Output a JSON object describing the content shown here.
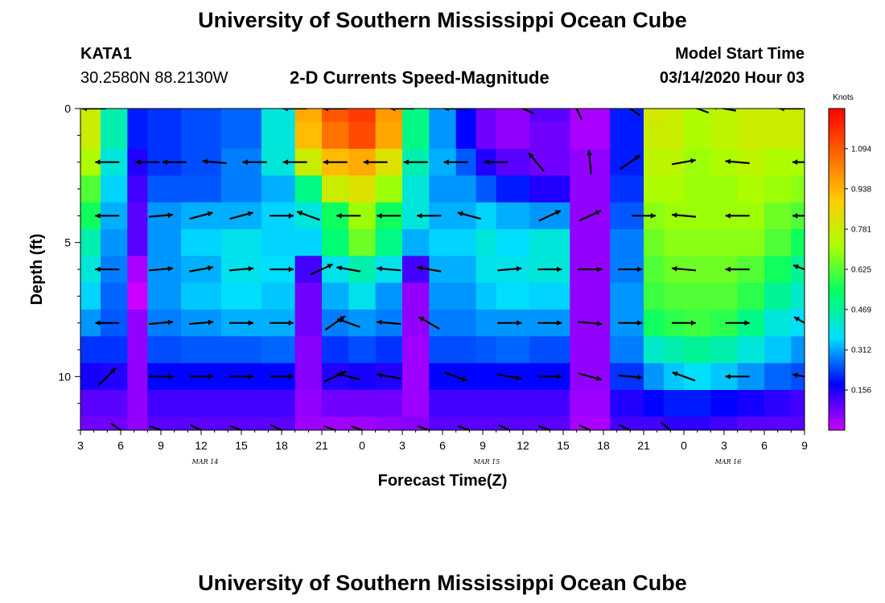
{
  "header": {
    "title": "University of Southern Mississippi Ocean Cube",
    "station": "KATA1",
    "coords": "30.2580N 88.2130W",
    "product": "2-D Currents Speed-Magnitude",
    "model_start_label": "Model Start Time",
    "model_start_value": "03/14/2020 Hour 03"
  },
  "footer": {
    "title": "University of Southern Mississippi Ocean Cube"
  },
  "chart_data": {
    "type": "heatmap",
    "title": "2-D Currents Speed-Magnitude",
    "xlabel": "Forecast Time(Z)",
    "ylabel": "Depth (ft)",
    "x_tick_labels": [
      "3",
      "6",
      "9",
      "12",
      "15",
      "18",
      "21",
      "0",
      "3",
      "6",
      "9",
      "12",
      "15",
      "18",
      "21",
      "0",
      "3",
      "6",
      "9"
    ],
    "date_labels": [
      {
        "text": "MAR 14",
        "tick_index": 3
      },
      {
        "text": "MAR 15",
        "tick_index": 10
      },
      {
        "text": "MAR 16",
        "tick_index": 16
      }
    ],
    "y_ticks": [
      0,
      5,
      10
    ],
    "ylim": [
      0,
      12
    ],
    "y_inverted": true,
    "colorbar": {
      "unit": "Knots",
      "range": [
        0.0,
        1.25
      ],
      "tick_values": [
        1.094,
        0.938,
        0.781,
        0.625,
        0.469,
        0.312,
        0.156
      ],
      "tick_labels": [
        "1.094",
        "0.938",
        "0.781",
        "0.625",
        "0.469",
        "0.312",
        "0.156"
      ],
      "colors": [
        "#cc00ff",
        "#0000ff",
        "#00ddff",
        "#00ff66",
        "#aaff00",
        "#ffcc00",
        "#ff6600",
        "#ff0000"
      ]
    },
    "time_hours": [
      3,
      6,
      7,
      9,
      12,
      15,
      18,
      20,
      22,
      24,
      26,
      28,
      30,
      32,
      33,
      35,
      38,
      41,
      44,
      46,
      47,
      49,
      51,
      53,
      55,
      57
    ],
    "depths_ft": [
      0,
      1,
      2,
      3,
      4,
      5,
      6,
      7,
      8,
      9,
      10,
      11,
      12
    ],
    "speed_knots": [
      [
        0.78,
        0.45,
        0.2,
        0.22,
        0.24,
        0.26,
        0.4,
        0.95,
        1.1,
        1.15,
        0.98,
        0.5,
        0.3,
        0.18,
        0.08,
        0.05,
        0.1,
        0.03,
        0.2,
        0.8,
        0.78,
        0.72,
        0.75,
        0.78,
        0.78,
        0.78
      ],
      [
        0.78,
        0.45,
        0.2,
        0.22,
        0.24,
        0.26,
        0.4,
        0.92,
        1.05,
        1.12,
        0.96,
        0.5,
        0.3,
        0.18,
        0.08,
        0.05,
        0.08,
        0.03,
        0.2,
        0.78,
        0.78,
        0.72,
        0.75,
        0.78,
        0.78,
        0.78
      ],
      [
        0.72,
        0.4,
        0.15,
        0.22,
        0.24,
        0.28,
        0.4,
        0.78,
        0.92,
        0.95,
        0.82,
        0.45,
        0.32,
        0.25,
        0.15,
        0.1,
        0.08,
        0.05,
        0.2,
        0.75,
        0.75,
        0.7,
        0.72,
        0.75,
        0.72,
        0.72
      ],
      [
        0.62,
        0.35,
        0.12,
        0.25,
        0.25,
        0.28,
        0.32,
        0.5,
        0.78,
        0.82,
        0.7,
        0.4,
        0.3,
        0.3,
        0.25,
        0.2,
        0.15,
        0.05,
        0.22,
        0.72,
        0.72,
        0.7,
        0.7,
        0.72,
        0.7,
        0.68
      ],
      [
        0.55,
        0.32,
        0.1,
        0.3,
        0.32,
        0.32,
        0.35,
        0.4,
        0.55,
        0.7,
        0.55,
        0.4,
        0.32,
        0.32,
        0.35,
        0.32,
        0.3,
        0.05,
        0.25,
        0.68,
        0.7,
        0.7,
        0.7,
        0.7,
        0.65,
        0.62
      ],
      [
        0.45,
        0.3,
        0.1,
        0.3,
        0.35,
        0.38,
        0.35,
        0.35,
        0.52,
        0.65,
        0.5,
        0.32,
        0.35,
        0.35,
        0.4,
        0.36,
        0.4,
        0.05,
        0.28,
        0.65,
        0.68,
        0.68,
        0.68,
        0.68,
        0.62,
        0.55
      ],
      [
        0.4,
        0.28,
        0.03,
        0.3,
        0.32,
        0.38,
        0.36,
        0.12,
        0.38,
        0.45,
        0.38,
        0.12,
        0.32,
        0.32,
        0.38,
        0.38,
        0.4,
        0.05,
        0.28,
        0.62,
        0.65,
        0.65,
        0.65,
        0.62,
        0.55,
        0.48
      ],
      [
        0.35,
        0.26,
        0.0,
        0.3,
        0.34,
        0.36,
        0.34,
        0.08,
        0.32,
        0.38,
        0.3,
        0.05,
        0.3,
        0.3,
        0.34,
        0.36,
        0.35,
        0.05,
        0.3,
        0.6,
        0.62,
        0.62,
        0.62,
        0.58,
        0.48,
        0.42
      ],
      [
        0.3,
        0.25,
        0.05,
        0.28,
        0.3,
        0.32,
        0.32,
        0.08,
        0.28,
        0.3,
        0.28,
        0.05,
        0.28,
        0.28,
        0.3,
        0.3,
        0.3,
        0.05,
        0.3,
        0.55,
        0.58,
        0.6,
        0.58,
        0.5,
        0.4,
        0.36
      ],
      [
        0.22,
        0.22,
        0.05,
        0.24,
        0.25,
        0.25,
        0.26,
        0.06,
        0.22,
        0.24,
        0.22,
        0.04,
        0.24,
        0.24,
        0.25,
        0.26,
        0.24,
        0.05,
        0.28,
        0.42,
        0.45,
        0.48,
        0.45,
        0.4,
        0.34,
        0.3
      ],
      [
        0.16,
        0.15,
        0.05,
        0.18,
        0.18,
        0.18,
        0.18,
        0.06,
        0.15,
        0.16,
        0.15,
        0.04,
        0.18,
        0.18,
        0.18,
        0.18,
        0.18,
        0.05,
        0.22,
        0.3,
        0.34,
        0.36,
        0.34,
        0.3,
        0.26,
        0.24
      ],
      [
        0.1,
        0.1,
        0.05,
        0.12,
        0.12,
        0.12,
        0.12,
        0.05,
        0.08,
        0.08,
        0.08,
        0.04,
        0.12,
        0.12,
        0.12,
        0.12,
        0.12,
        0.04,
        0.15,
        0.18,
        0.2,
        0.2,
        0.18,
        0.16,
        0.14,
        0.12
      ],
      [
        0.08,
        0.08,
        0.05,
        0.1,
        0.1,
        0.1,
        0.1,
        0.04,
        0.04,
        0.04,
        0.05,
        0.06,
        0.1,
        0.1,
        0.1,
        0.1,
        0.1,
        0.03,
        0.12,
        0.12,
        0.14,
        0.14,
        0.12,
        0.1,
        0.1,
        0.1
      ]
    ],
    "vectors": [
      {
        "t": 4,
        "d": 0,
        "dir": 180
      },
      {
        "t": 19,
        "d": 0,
        "dir": 180
      },
      {
        "t": 22,
        "d": 0,
        "dir": 180
      },
      {
        "t": 27,
        "d": 0,
        "dir": 180
      },
      {
        "t": 31,
        "d": 0,
        "dir": 180
      },
      {
        "t": 36,
        "d": 0,
        "dir": 155
      },
      {
        "t": 40,
        "d": 0,
        "dir": 115
      },
      {
        "t": 44,
        "d": 0,
        "dir": 145
      },
      {
        "t": 49,
        "d": 0,
        "dir": 160
      },
      {
        "t": 51,
        "d": 0,
        "dir": 170
      },
      {
        "t": 56,
        "d": 0,
        "dir": 180
      },
      {
        "t": 5,
        "d": 2,
        "dir": 180
      },
      {
        "t": 8,
        "d": 2,
        "dir": 180
      },
      {
        "t": 10,
        "d": 2,
        "dir": 180
      },
      {
        "t": 13,
        "d": 2,
        "dir": 175
      },
      {
        "t": 16,
        "d": 2,
        "dir": 180
      },
      {
        "t": 19,
        "d": 2,
        "dir": 180
      },
      {
        "t": 22,
        "d": 2,
        "dir": 180
      },
      {
        "t": 25,
        "d": 2,
        "dir": 180
      },
      {
        "t": 28,
        "d": 2,
        "dir": 180
      },
      {
        "t": 31,
        "d": 2,
        "dir": 180
      },
      {
        "t": 34,
        "d": 2,
        "dir": 180
      },
      {
        "t": 37,
        "d": 2,
        "dir": 130
      },
      {
        "t": 41,
        "d": 2,
        "dir": 95
      },
      {
        "t": 44,
        "d": 2,
        "dir": 35
      },
      {
        "t": 48,
        "d": 2,
        "dir": 10
      },
      {
        "t": 52,
        "d": 2,
        "dir": 175
      },
      {
        "t": 57,
        "d": 2,
        "dir": 180
      },
      {
        "t": 5,
        "d": 4,
        "dir": 180
      },
      {
        "t": 9,
        "d": 4,
        "dir": 5
      },
      {
        "t": 12,
        "d": 4,
        "dir": 15
      },
      {
        "t": 15,
        "d": 4,
        "dir": 15
      },
      {
        "t": 18,
        "d": 4,
        "dir": 0
      },
      {
        "t": 20,
        "d": 4,
        "dir": 160
      },
      {
        "t": 23,
        "d": 4,
        "dir": 180
      },
      {
        "t": 26,
        "d": 4,
        "dir": 180
      },
      {
        "t": 29,
        "d": 4,
        "dir": 180
      },
      {
        "t": 32,
        "d": 4,
        "dir": 165
      },
      {
        "t": 38,
        "d": 4,
        "dir": 25
      },
      {
        "t": 41,
        "d": 4,
        "dir": 25
      },
      {
        "t": 45,
        "d": 4,
        "dir": 0
      },
      {
        "t": 48,
        "d": 4,
        "dir": 175
      },
      {
        "t": 52,
        "d": 4,
        "dir": 180
      },
      {
        "t": 57,
        "d": 4,
        "dir": 180
      },
      {
        "t": 5,
        "d": 6,
        "dir": 180
      },
      {
        "t": 9,
        "d": 6,
        "dir": 5
      },
      {
        "t": 12,
        "d": 6,
        "dir": 10
      },
      {
        "t": 15,
        "d": 6,
        "dir": 5
      },
      {
        "t": 18,
        "d": 6,
        "dir": 0
      },
      {
        "t": 21,
        "d": 6,
        "dir": 25
      },
      {
        "t": 23,
        "d": 6,
        "dir": 170
      },
      {
        "t": 26,
        "d": 6,
        "dir": 175
      },
      {
        "t": 29,
        "d": 6,
        "dir": 170
      },
      {
        "t": 35,
        "d": 6,
        "dir": 5
      },
      {
        "t": 38,
        "d": 6,
        "dir": 0
      },
      {
        "t": 41,
        "d": 6,
        "dir": 0
      },
      {
        "t": 44,
        "d": 6,
        "dir": 0
      },
      {
        "t": 48,
        "d": 6,
        "dir": 175
      },
      {
        "t": 52,
        "d": 6,
        "dir": 180
      },
      {
        "t": 57,
        "d": 6,
        "dir": 160
      },
      {
        "t": 5,
        "d": 8,
        "dir": 180
      },
      {
        "t": 9,
        "d": 8,
        "dir": 5
      },
      {
        "t": 12,
        "d": 8,
        "dir": 5
      },
      {
        "t": 15,
        "d": 8,
        "dir": 0
      },
      {
        "t": 18,
        "d": 8,
        "dir": 0
      },
      {
        "t": 22,
        "d": 8,
        "dir": 35
      },
      {
        "t": 23,
        "d": 8,
        "dir": 160
      },
      {
        "t": 26,
        "d": 8,
        "dir": 175
      },
      {
        "t": 29,
        "d": 8,
        "dir": 150
      },
      {
        "t": 35,
        "d": 8,
        "dir": 0
      },
      {
        "t": 38,
        "d": 8,
        "dir": 0
      },
      {
        "t": 41,
        "d": 8,
        "dir": 355
      },
      {
        "t": 44,
        "d": 8,
        "dir": 0
      },
      {
        "t": 48,
        "d": 8,
        "dir": 0
      },
      {
        "t": 52,
        "d": 8,
        "dir": 0
      },
      {
        "t": 57,
        "d": 8,
        "dir": 150
      },
      {
        "t": 5,
        "d": 10,
        "dir": 45
      },
      {
        "t": 9,
        "d": 10,
        "dir": 0
      },
      {
        "t": 12,
        "d": 10,
        "dir": 0
      },
      {
        "t": 15,
        "d": 10,
        "dir": 0
      },
      {
        "t": 18,
        "d": 10,
        "dir": 0
      },
      {
        "t": 22,
        "d": 10,
        "dir": 25
      },
      {
        "t": 23,
        "d": 10,
        "dir": 165
      },
      {
        "t": 26,
        "d": 10,
        "dir": 170
      },
      {
        "t": 31,
        "d": 10,
        "dir": 340
      },
      {
        "t": 35,
        "d": 10,
        "dir": 350
      },
      {
        "t": 38,
        "d": 10,
        "dir": 0
      },
      {
        "t": 41,
        "d": 10,
        "dir": 345
      },
      {
        "t": 44,
        "d": 10,
        "dir": 355
      },
      {
        "t": 48,
        "d": 10,
        "dir": 160
      },
      {
        "t": 52,
        "d": 10,
        "dir": 180
      },
      {
        "t": 57,
        "d": 10,
        "dir": 170
      },
      {
        "t": 6,
        "d": 12,
        "dir": 325
      },
      {
        "t": 9,
        "d": 12,
        "dir": 340
      },
      {
        "t": 12,
        "d": 12,
        "dir": 335
      },
      {
        "t": 15,
        "d": 12,
        "dir": 340
      },
      {
        "t": 18,
        "d": 12,
        "dir": 335
      },
      {
        "t": 22,
        "d": 12,
        "dir": 340
      },
      {
        "t": 24,
        "d": 12,
        "dir": 340
      },
      {
        "t": 29,
        "d": 12,
        "dir": 340
      },
      {
        "t": 32,
        "d": 12,
        "dir": 340
      },
      {
        "t": 35,
        "d": 12,
        "dir": 335
      },
      {
        "t": 38,
        "d": 12,
        "dir": 340
      },
      {
        "t": 41,
        "d": 12,
        "dir": 335
      },
      {
        "t": 44,
        "d": 12,
        "dir": 335
      },
      {
        "t": 47,
        "d": 12,
        "dir": 320
      }
    ]
  }
}
